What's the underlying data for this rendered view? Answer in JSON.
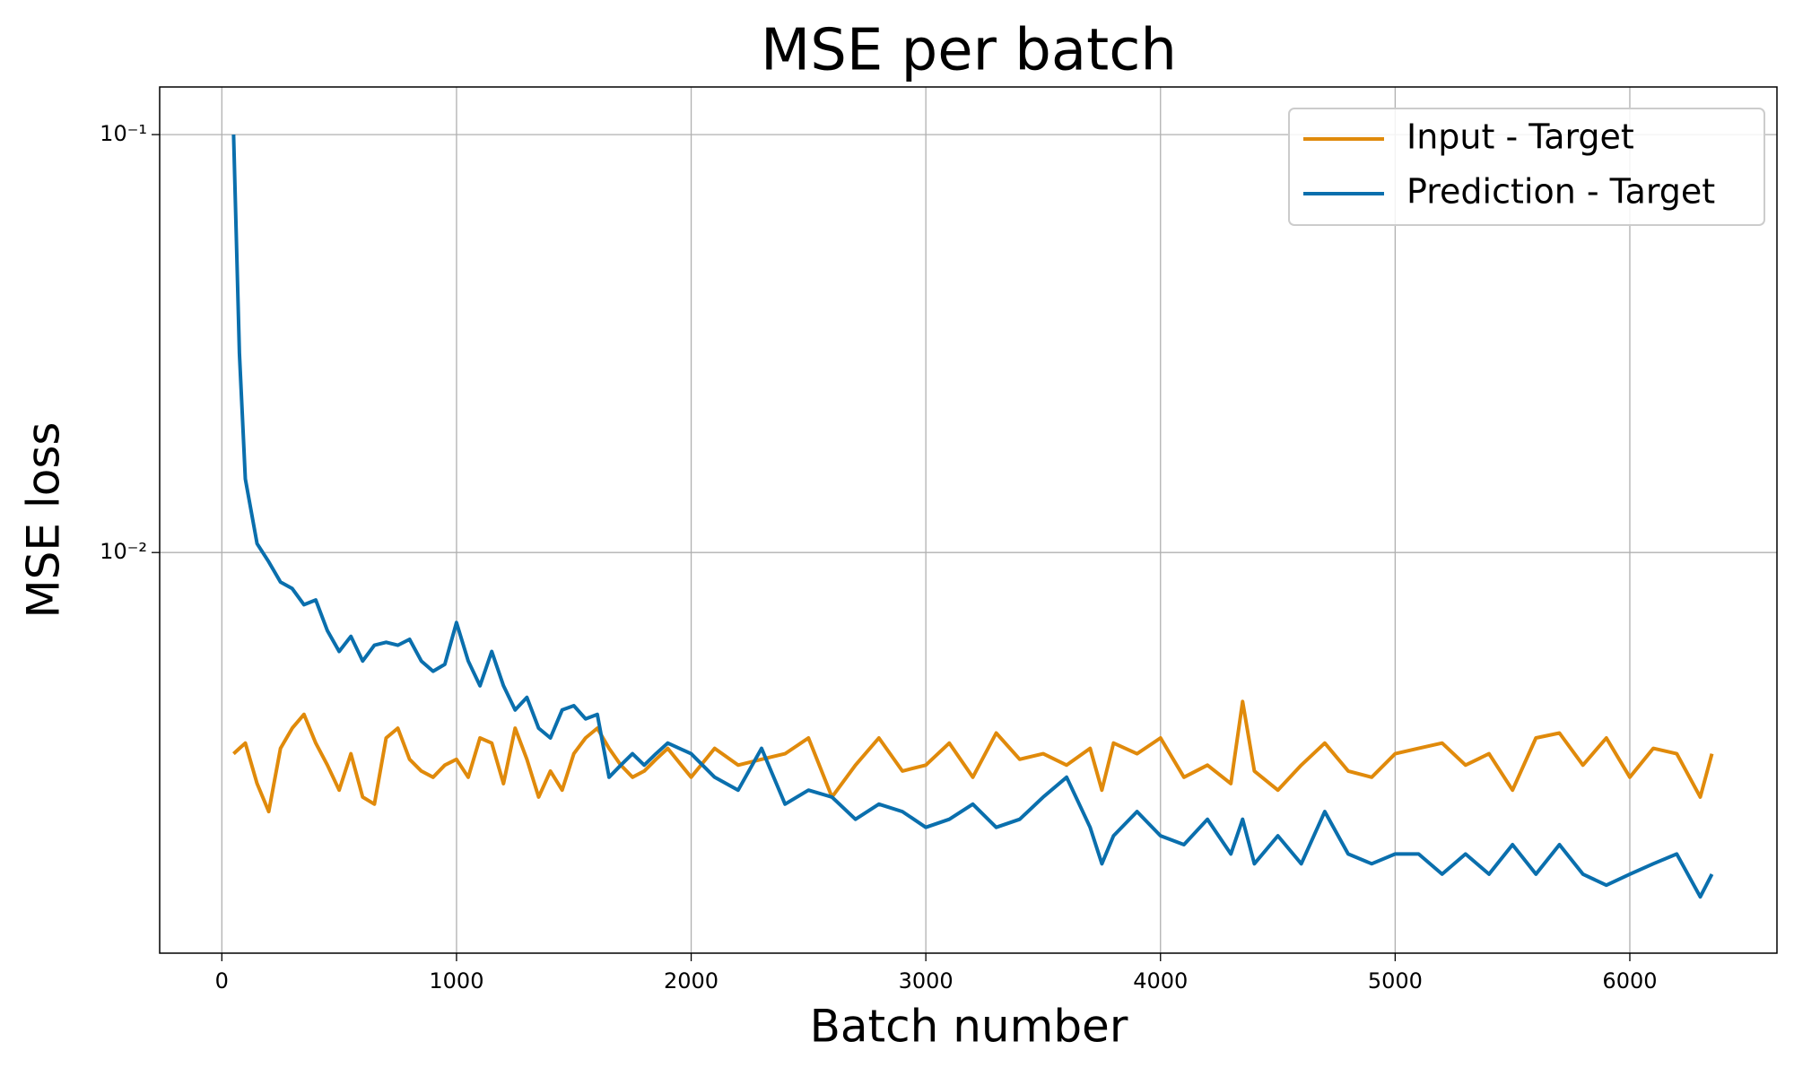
{
  "chart_data": {
    "type": "line",
    "title": "MSE per batch",
    "x_label": "Batch number",
    "y_label": "MSE loss",
    "yscale": "log",
    "grid": true,
    "legend": "upper right",
    "xlim": [
      -265,
      6627
    ],
    "ylim": [
      0.0011,
      0.13
    ],
    "xticks": [
      0,
      1000,
      2000,
      3000,
      4000,
      5000,
      6000
    ],
    "yticks": [
      {
        "value": 0.01,
        "label": "10⁻²"
      },
      {
        "value": 0.1,
        "label": "10⁻¹"
      }
    ],
    "x": [
      50,
      75,
      100,
      150,
      200,
      250,
      300,
      350,
      400,
      450,
      500,
      550,
      600,
      650,
      700,
      750,
      800,
      850,
      900,
      950,
      1000,
      1050,
      1100,
      1150,
      1200,
      1250,
      1300,
      1350,
      1400,
      1450,
      1500,
      1550,
      1600,
      1650,
      1700,
      1750,
      1800,
      1850,
      1900,
      2000,
      2100,
      2200,
      2300,
      2400,
      2500,
      2600,
      2700,
      2800,
      2900,
      3000,
      3100,
      3200,
      3300,
      3400,
      3500,
      3600,
      3700,
      3750,
      3800,
      3900,
      4000,
      4100,
      4200,
      4300,
      4350,
      4400,
      4500,
      4600,
      4700,
      4800,
      4900,
      5000,
      5100,
      5200,
      5300,
      5400,
      5500,
      5600,
      5700,
      5800,
      5900,
      6000,
      6100,
      6200,
      6300,
      6350
    ],
    "series": [
      {
        "name": "Input - Target",
        "color": "#e08a0b",
        "values": [
          0.0033,
          0.0034,
          0.0035,
          0.0028,
          0.0024,
          0.0034,
          0.0038,
          0.0041,
          0.0035,
          0.0031,
          0.0027,
          0.0033,
          0.0026,
          0.0025,
          0.0036,
          0.0038,
          0.0032,
          0.003,
          0.0029,
          0.0031,
          0.0032,
          0.0029,
          0.0036,
          0.0035,
          0.0028,
          0.0038,
          0.0032,
          0.0026,
          0.003,
          0.0027,
          0.0033,
          0.0036,
          0.0038,
          0.0034,
          0.0031,
          0.0029,
          0.003,
          0.0032,
          0.0034,
          0.0029,
          0.0034,
          0.0031,
          0.0032,
          0.0033,
          0.0036,
          0.0026,
          0.0031,
          0.0036,
          0.003,
          0.0031,
          0.0035,
          0.0029,
          0.0037,
          0.0032,
          0.0033,
          0.0031,
          0.0034,
          0.0027,
          0.0035,
          0.0033,
          0.0036,
          0.0029,
          0.0031,
          0.0028,
          0.0044,
          0.003,
          0.0027,
          0.0031,
          0.0035,
          0.003,
          0.0029,
          0.0033,
          0.0034,
          0.0035,
          0.0031,
          0.0033,
          0.0027,
          0.0036,
          0.0037,
          0.0031,
          0.0036,
          0.0029,
          0.0034,
          0.0033,
          0.0026,
          0.0033
        ]
      },
      {
        "name": "Prediction - Target",
        "color": "#0a6fad",
        "values": [
          0.1,
          0.03,
          0.015,
          0.0105,
          0.0095,
          0.0085,
          0.0082,
          0.0075,
          0.0077,
          0.0065,
          0.0058,
          0.0063,
          0.0055,
          0.006,
          0.0061,
          0.006,
          0.0062,
          0.0055,
          0.0052,
          0.0054,
          0.0068,
          0.0055,
          0.0048,
          0.0058,
          0.0048,
          0.0042,
          0.0045,
          0.0038,
          0.0036,
          0.0042,
          0.0043,
          0.004,
          0.0041,
          0.0029,
          0.0031,
          0.0033,
          0.0031,
          0.0033,
          0.0035,
          0.0033,
          0.0029,
          0.0027,
          0.0034,
          0.0025,
          0.0027,
          0.0026,
          0.0023,
          0.0025,
          0.0024,
          0.0022,
          0.0023,
          0.0025,
          0.0022,
          0.0023,
          0.0026,
          0.0029,
          0.0022,
          0.0018,
          0.0021,
          0.0024,
          0.0021,
          0.002,
          0.0023,
          0.0019,
          0.0023,
          0.0018,
          0.0021,
          0.0018,
          0.0024,
          0.0019,
          0.0018,
          0.0019,
          0.0019,
          0.0017,
          0.0019,
          0.0017,
          0.002,
          0.0017,
          0.002,
          0.0017,
          0.0016,
          0.0017,
          0.0018,
          0.0019,
          0.0015,
          0.0017
        ]
      }
    ]
  }
}
